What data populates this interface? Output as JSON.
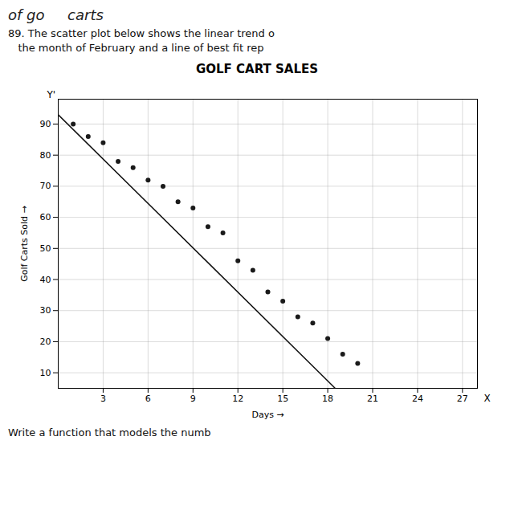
{
  "chart_data": {
    "type": "scatter",
    "title": "GOLF CART SALES",
    "xlabel": "Days",
    "ylabel": "Golf Carts Sold",
    "series": [
      {
        "type": "scatter",
        "marker": "circle",
        "color": "#1a1a1a",
        "x": [
          1,
          2,
          3,
          4,
          5,
          6,
          7,
          8,
          9,
          10,
          11,
          12,
          13,
          14,
          15,
          16,
          17,
          18,
          19,
          20
        ],
        "values": [
          90,
          86,
          84,
          78,
          76,
          72,
          70,
          65,
          63,
          57,
          55,
          46,
          43,
          36,
          33,
          28,
          26,
          21,
          16,
          13
        ]
      },
      {
        "type": "line",
        "line_style": "solid",
        "color": "#111111",
        "x": [
          0,
          18.5
        ],
        "values": [
          93,
          5
        ]
      }
    ],
    "xlim": [
      0,
      28
    ],
    "ylim": [
      5,
      98
    ],
    "xticks": [
      3,
      6,
      9,
      12,
      15,
      18,
      21,
      24,
      27
    ],
    "yticks": [
      10,
      20,
      30,
      40,
      50,
      60,
      70,
      80,
      90
    ],
    "grid": true,
    "annotations": [
      "of go     carts",
      "89. The scatter plot below shows the linear trend o",
      "   the month of February and a line of best fit rep",
      "Y'",
      "X",
      "Write a function that models the numb"
    ]
  }
}
